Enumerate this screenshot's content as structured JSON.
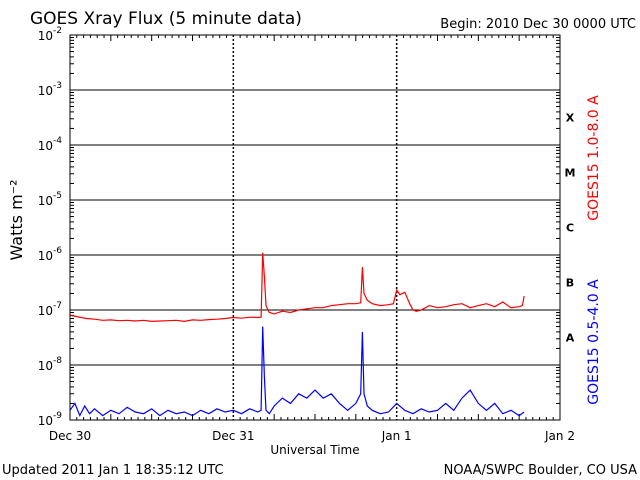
{
  "header": {
    "title": "GOES Xray Flux (5 minute data)",
    "begin": "Begin:  2010 Dec 30 0000 UTC"
  },
  "footer": {
    "updated": "Updated 2011 Jan  1 18:35:12 UTC",
    "credit": "NOAA/SWPC Boulder, CO USA"
  },
  "chart_data": {
    "type": "line",
    "title": "GOES Xray Flux (5 minute data)",
    "xlabel": "Universal Time",
    "ylabel": "Watts m⁻²",
    "yscale": "log",
    "ylim": [
      1e-09,
      0.01
    ],
    "xlim": [
      0,
      3
    ],
    "x_ticks": [
      {
        "pos": 0,
        "label": "Dec 30"
      },
      {
        "pos": 1,
        "label": "Dec 31"
      },
      {
        "pos": 2,
        "label": "Jan 1"
      },
      {
        "pos": 3,
        "label": "Jan 2"
      }
    ],
    "y_ticks": [
      {
        "exp": -9,
        "label": "10",
        "sup": "-9"
      },
      {
        "exp": -8,
        "label": "10",
        "sup": "-8"
      },
      {
        "exp": -7,
        "label": "10",
        "sup": "-7"
      },
      {
        "exp": -6,
        "label": "10",
        "sup": "-6"
      },
      {
        "exp": -5,
        "label": "10",
        "sup": "-5"
      },
      {
        "exp": -4,
        "label": "10",
        "sup": "-4"
      },
      {
        "exp": -3,
        "label": "10",
        "sup": "-3"
      },
      {
        "exp": -2,
        "label": "10",
        "sup": "-2"
      }
    ],
    "flare_classes": [
      {
        "label": "A",
        "exp": -7.5
      },
      {
        "label": "B",
        "exp": -6.5
      },
      {
        "label": "C",
        "exp": -5.5
      },
      {
        "label": "M",
        "exp": -4.5
      },
      {
        "label": "X",
        "exp": -3.5
      }
    ],
    "grid": true,
    "series": [
      {
        "name": "GOES15 1.0-8.0 A",
        "color": "#ff0000",
        "x": [
          0,
          0.05,
          0.1,
          0.15,
          0.2,
          0.25,
          0.3,
          0.35,
          0.4,
          0.45,
          0.5,
          0.55,
          0.6,
          0.65,
          0.7,
          0.75,
          0.8,
          0.85,
          0.9,
          0.95,
          1.0,
          1.05,
          1.1,
          1.15,
          1.17,
          1.18,
          1.19,
          1.2,
          1.22,
          1.25,
          1.3,
          1.35,
          1.4,
          1.45,
          1.5,
          1.55,
          1.6,
          1.65,
          1.7,
          1.75,
          1.78,
          1.79,
          1.8,
          1.82,
          1.85,
          1.9,
          1.95,
          1.98,
          2.0,
          2.02,
          2.05,
          2.08,
          2.1,
          2.12,
          2.15,
          2.2,
          2.25,
          2.3,
          2.35,
          2.4,
          2.45,
          2.5,
          2.55,
          2.6,
          2.65,
          2.7,
          2.75,
          2.77,
          2.78
        ],
        "y": [
          8e-08,
          7.5e-08,
          7e-08,
          6.8e-08,
          6.5e-08,
          6.6e-08,
          6.4e-08,
          6.5e-08,
          6.3e-08,
          6.5e-08,
          6.2e-08,
          6.3e-08,
          6.4e-08,
          6.5e-08,
          6.2e-08,
          6.6e-08,
          6.5e-08,
          6.7e-08,
          6.8e-08,
          7e-08,
          7.3e-08,
          7.1e-08,
          7.4e-08,
          7.3e-08,
          7.4e-08,
          1.1e-06,
          4e-07,
          1.2e-07,
          9e-08,
          8.5e-08,
          9.5e-08,
          9e-08,
          1e-07,
          1.05e-07,
          1.1e-07,
          1.1e-07,
          1.2e-07,
          1.25e-07,
          1.3e-07,
          1.3e-07,
          1.35e-07,
          6e-07,
          2e-07,
          1.5e-07,
          1.3e-07,
          1.2e-07,
          1.25e-07,
          1.3e-07,
          2.3e-07,
          1.9e-07,
          2.1e-07,
          1.3e-07,
          1e-07,
          9.5e-08,
          1e-07,
          1.2e-07,
          1.1e-07,
          1.15e-07,
          1.25e-07,
          1.3e-07,
          1.1e-07,
          1.2e-07,
          1.3e-07,
          1.15e-07,
          1.4e-07,
          1.1e-07,
          1.15e-07,
          1.2e-07,
          1.8e-07
        ]
      },
      {
        "name": "GOES15 0.5-4.0 A",
        "color": "#0000ff",
        "x": [
          0,
          0.03,
          0.06,
          0.09,
          0.12,
          0.15,
          0.2,
          0.25,
          0.3,
          0.35,
          0.4,
          0.45,
          0.5,
          0.55,
          0.6,
          0.65,
          0.7,
          0.75,
          0.8,
          0.85,
          0.9,
          0.95,
          1.0,
          1.05,
          1.1,
          1.15,
          1.17,
          1.18,
          1.19,
          1.2,
          1.22,
          1.25,
          1.3,
          1.35,
          1.4,
          1.45,
          1.5,
          1.55,
          1.6,
          1.65,
          1.7,
          1.75,
          1.78,
          1.79,
          1.8,
          1.82,
          1.85,
          1.9,
          1.95,
          2.0,
          2.05,
          2.1,
          2.15,
          2.2,
          2.25,
          2.3,
          2.35,
          2.4,
          2.45,
          2.5,
          2.55,
          2.6,
          2.65,
          2.7,
          2.75,
          2.78
        ],
        "y": [
          1.5e-09,
          2e-09,
          1.2e-09,
          1.8e-09,
          1.3e-09,
          1.6e-09,
          1.2e-09,
          1.5e-09,
          1.3e-09,
          1.7e-09,
          1.4e-09,
          1.3e-09,
          1.6e-09,
          1.2e-09,
          1.5e-09,
          1.3e-09,
          1.4e-09,
          1.2e-09,
          1.5e-09,
          1.3e-09,
          1.6e-09,
          1.4e-09,
          1.5e-09,
          1.3e-09,
          1.6e-09,
          1.4e-09,
          1.5e-09,
          5e-08,
          6e-09,
          1.5e-09,
          1.3e-09,
          1.8e-09,
          2.5e-09,
          2e-09,
          3e-09,
          2.5e-09,
          3.5e-09,
          2.5e-09,
          3e-09,
          2e-09,
          1.5e-09,
          2e-09,
          3e-09,
          4e-08,
          3e-09,
          1.8e-09,
          1.5e-09,
          1.3e-09,
          1.4e-09,
          2e-09,
          1.5e-09,
          1.3e-09,
          1.6e-09,
          1.4e-09,
          1.5e-09,
          2e-09,
          1.5e-09,
          2.5e-09,
          3.5e-09,
          2e-09,
          1.5e-09,
          2e-09,
          1.3e-09,
          1.5e-09,
          1.2e-09,
          1.4e-09
        ]
      }
    ]
  }
}
